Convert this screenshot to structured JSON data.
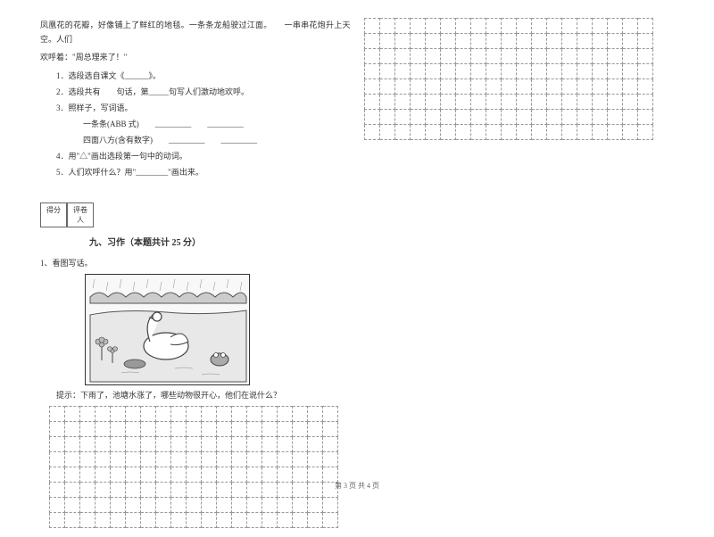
{
  "passage": {
    "line1": "凤凰花的花瓣，好像铺上了鲜红的地毯。一条条龙船驶过江面。　　一串串花炮升上天空。人们",
    "line2": "欢呼着：\"周总理来了！\""
  },
  "questions": {
    "q1": "1．选段选自课文《______》。",
    "q2": "2．选段共有　　句话，第_____句写人们激动地欢呼。",
    "q3": "3．照样子，写词语。",
    "q3a": "一条条(ABB 式)　　_________　　_________",
    "q3b": "四面八方(含有数字)　　_________　　_________",
    "q4": "4．用\"△\"画出选段第一句中的动词。",
    "q5": "5．人们欢呼什么？用\"________\"画出来。"
  },
  "scoreBox": {
    "label1": "得分",
    "label2": "评卷人"
  },
  "section": {
    "title": "九、习作（本题共计 25 分）"
  },
  "writing": {
    "subtitle": "1、看图写话。",
    "hint": "提示：下雨了，池塘水涨了，哪些动物很开心，他们在说什么？"
  },
  "grid": {
    "leftCols": 19,
    "leftRows": 8,
    "rightCols": 19,
    "rightRows": 8
  },
  "footer": "第 3 页 共 4 页",
  "colors": {
    "text": "#333333",
    "border": "#999999",
    "bg": "#ffffff"
  }
}
